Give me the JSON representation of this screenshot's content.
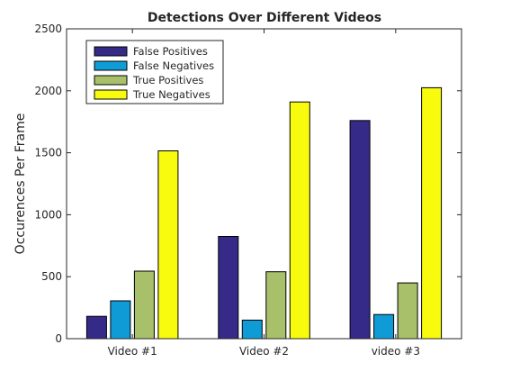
{
  "chart_data": {
    "type": "bar",
    "title": "Detections Over Different Videos",
    "xlabel": "",
    "ylabel": "Occurences Per Frame",
    "categories": [
      "Video #1",
      "Video #2",
      "video #3"
    ],
    "ylim": [
      0,
      2500
    ],
    "yticks": [
      0,
      500,
      1000,
      1500,
      2000,
      2500
    ],
    "legend_position": "top-left",
    "series": [
      {
        "name": "False Positives",
        "color": "#352a87",
        "values": [
          180,
          825,
          1760
        ]
      },
      {
        "name": "False Negatives",
        "color": "#0f9cd6",
        "values": [
          305,
          150,
          195
        ]
      },
      {
        "name": "True Positives",
        "color": "#a9c06b",
        "values": [
          545,
          540,
          450
        ]
      },
      {
        "name": "True Negatives",
        "color": "#f9fb0e",
        "values": [
          1515,
          1910,
          2025
        ]
      }
    ]
  }
}
